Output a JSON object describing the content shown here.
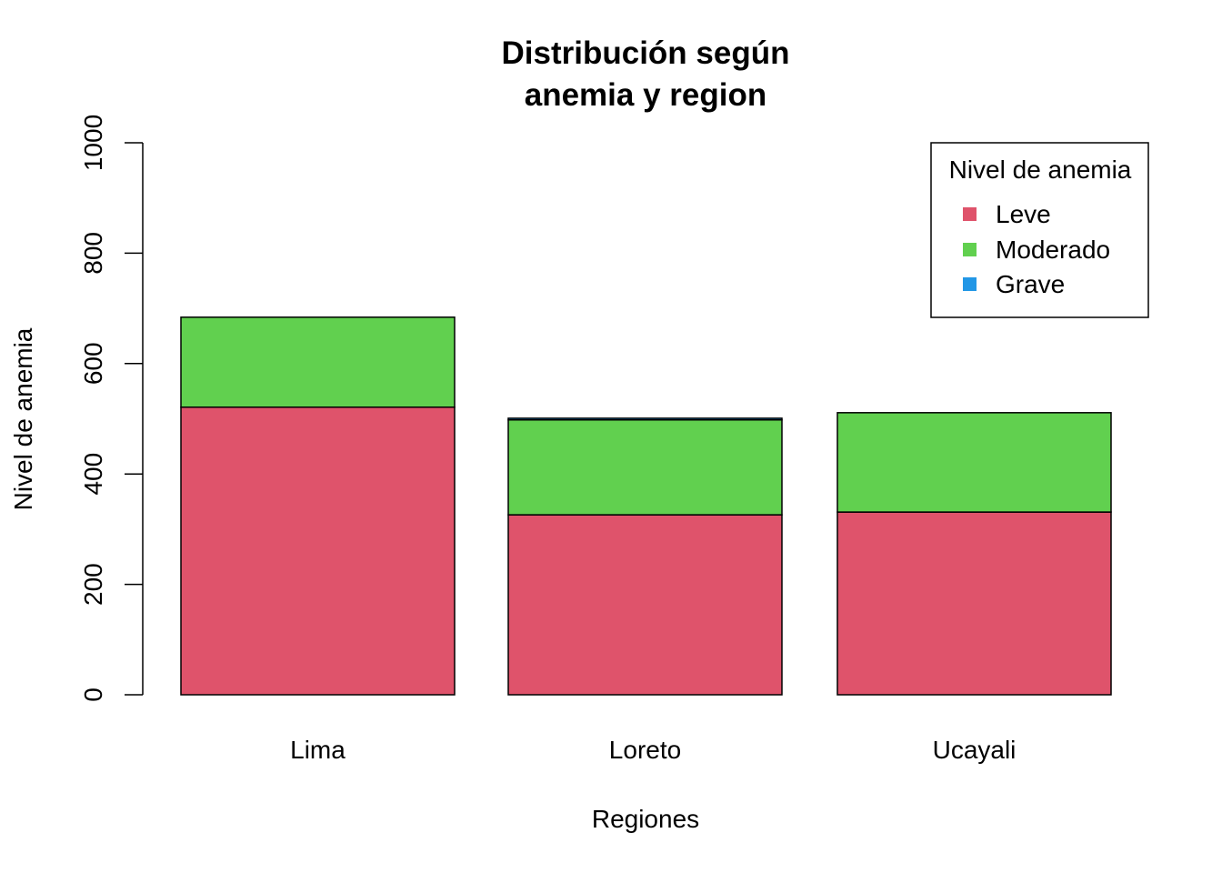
{
  "chart_data": {
    "type": "bar",
    "stacked": true,
    "title_lines": [
      "Distribución según",
      "anemia y region"
    ],
    "xlabel": "Regiones",
    "ylabel": "Nivel de anemia",
    "categories": [
      "Lima",
      "Loreto",
      "Ucayali"
    ],
    "ylim": [
      0,
      1000
    ],
    "yticks": [
      0,
      200,
      400,
      600,
      800,
      1000
    ],
    "series": [
      {
        "name": "Leve",
        "color": "#DF536B",
        "values": [
          521,
          326,
          331
        ]
      },
      {
        "name": "Moderado",
        "color": "#61D04F",
        "values": [
          163,
          172,
          180
        ]
      },
      {
        "name": "Grave",
        "color": "#2297E6",
        "values": [
          0,
          3,
          0
        ]
      }
    ],
    "legend": {
      "title": "Nivel de anemia",
      "position": "top-right"
    },
    "grid": false
  }
}
